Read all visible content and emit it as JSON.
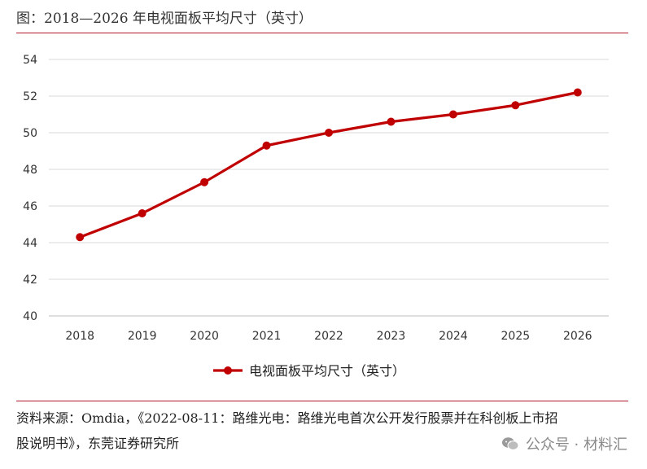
{
  "title": "图：2018—2026 年电视面板平均尺寸（英寸）",
  "chart_data": {
    "type": "line",
    "title": "",
    "xlabel": "",
    "ylabel": "",
    "categories": [
      "2018",
      "2019",
      "2020",
      "2021",
      "2022",
      "2023",
      "2024",
      "2025",
      "2026"
    ],
    "series": [
      {
        "name": "电视面板平均尺寸（英寸）",
        "values": [
          44.3,
          45.6,
          47.3,
          49.3,
          50.0,
          50.6,
          51.0,
          51.5,
          52.2
        ]
      }
    ],
    "ylim": [
      40,
      54
    ],
    "yticks": [
      "40",
      "42",
      "44",
      "46",
      "48",
      "50",
      "52",
      "54"
    ],
    "grid": true,
    "legend_position": "bottom",
    "colors": {
      "series": "#c00000",
      "grid": "#d9d9d9",
      "accent": "#b2182b"
    }
  },
  "source": {
    "line1": "资料来源：Omdia，《2022-08-11：路维光电：路维光电首次公开发行股票并在科创板上市招",
    "line2": "股说明书》，东莞证券研究所"
  },
  "watermark": {
    "text": "公众号 · 材料汇",
    "icon": "wechat-icon"
  }
}
